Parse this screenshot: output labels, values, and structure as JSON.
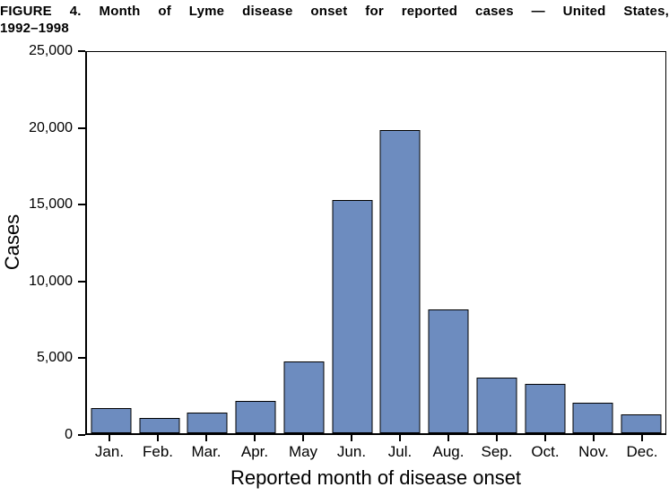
{
  "title": {
    "line1": "FIGURE 4. Month of Lyme disease onset for reported cases — United States,",
    "line2": "1992–1998"
  },
  "chart_data": {
    "type": "bar",
    "title": "FIGURE 4. Month of Lyme disease onset for reported cases — United States, 1992–1998",
    "categories": [
      "Jan.",
      "Feb.",
      "Mar.",
      "Apr.",
      "May",
      "Jun.",
      "Jul.",
      "Aug.",
      "Sep.",
      "Oct.",
      "Nov.",
      "Dec."
    ],
    "values": [
      1650,
      1000,
      1350,
      2100,
      4700,
      15300,
      19900,
      8100,
      3650,
      3250,
      2000,
      1250
    ],
    "xlabel": "Reported month of disease onset",
    "ylabel": "Cases",
    "ylim": [
      0,
      25000
    ],
    "ytick_interval": 5000,
    "ytick_labels": [
      "0",
      "5,000",
      "10,000",
      "15,000",
      "20,000",
      "25,000"
    ],
    "grid": false,
    "legend": "none",
    "bar_color": "#6d8cbf",
    "bar_border_color": "#000000",
    "axis_color": "#000000"
  }
}
